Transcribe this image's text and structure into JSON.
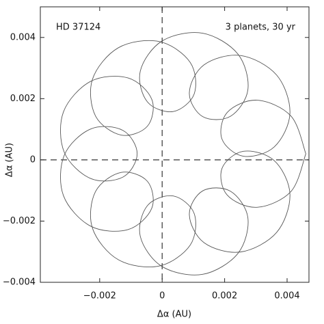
{
  "chart_data": {
    "type": "line",
    "x_label": "Δα (AU)",
    "y_label": "Δα (AU)",
    "annotations": [
      "HD 37124",
      "3 planets, 30 yr"
    ],
    "xlim": [
      -0.0039,
      0.0047
    ],
    "ylim": [
      -0.004,
      0.005
    ],
    "xticks": [
      {
        "value": -0.002,
        "label": "−0.002"
      },
      0,
      0.002,
      0.004
    ],
    "yticks": [
      {
        "value": -0.004,
        "label": "−0.004"
      },
      {
        "value": -0.002,
        "label": "−0.002"
      },
      0,
      0.002,
      0.004
    ],
    "zero_lines": true,
    "series": [
      {
        "color": "#555555",
        "x": [
          0.0046,
          0.004125,
          0.003034,
          0.002082,
          0.001916,
          0.002601,
          0.003588,
          0.004091,
          0.003664,
          0.002509,
          0.00134,
          0.00087,
          0.0013,
          0.002187,
          0.002745,
          0.002425,
          0.001296,
          -1e-06,
          -0.0007,
          -0.000471,
          0.000356,
          0.001027,
          0.000899,
          -9.7e-05,
          -0.0014,
          -0.00223,
          -0.002132,
          -0.001309,
          -0.000472,
          -0.000331,
          -0.001088,
          -0.002291,
          -0.00316,
          -0.003134,
          -0.002286,
          -0.001253,
          -0.0008,
          -0.001253,
          -0.002286,
          -0.003134,
          -0.00316,
          -0.002291,
          -0.001088,
          -0.000331,
          -0.000472,
          -0.001309,
          -0.002132,
          -0.00223,
          -0.0014,
          -9.7e-05,
          0.000899,
          0.001027,
          0.000356,
          -0.000471,
          -0.0007,
          -1e-06,
          0.001296,
          0.002425,
          0.002745,
          0.002187,
          0.0013,
          0.00087,
          0.00134,
          0.002509,
          0.003664,
          0.004091,
          0.003588,
          0.002601,
          0.001916,
          0.002082,
          0.003034,
          0.004125,
          0.0046
        ],
        "values": [
          0.0002,
          0.001431,
          0.00195,
          0.001549,
          0.000678,
          0.00012,
          0.000424,
          0.001524,
          0.002772,
          0.003409,
          0.003104,
          0.002185,
          0.001412,
          0.001424,
          0.002293,
          0.003458,
          0.00414,
          0.003885,
          0.0029,
          0.001893,
          0.00158,
          0.002158,
          0.003183,
          0.003868,
          0.003664,
          0.002637,
          0.001432,
          0.000809,
          0.0011,
          0.001976,
          0.002676,
          0.002564,
          0.001568,
          0.000249,
          -0.00061,
          -0.000561,
          0.0002,
          0.000961,
          0.00101,
          0.000151,
          -0.001168,
          -0.002164,
          -0.002276,
          -0.001576,
          -0.0007,
          -0.000409,
          -0.001032,
          -0.002237,
          -0.003264,
          -0.003468,
          -0.002783,
          -0.001758,
          -0.00118,
          -0.001493,
          -0.0025,
          -0.003485,
          -0.00374,
          -0.003058,
          -0.001893,
          -0.001024,
          -0.001012,
          -0.001785,
          -0.002704,
          -0.003009,
          -0.002372,
          -0.001124,
          -2.4e-05,
          0.00028,
          -0.000278,
          -0.001149,
          -0.00155,
          -0.001031,
          0.0002
        ]
      }
    ]
  }
}
